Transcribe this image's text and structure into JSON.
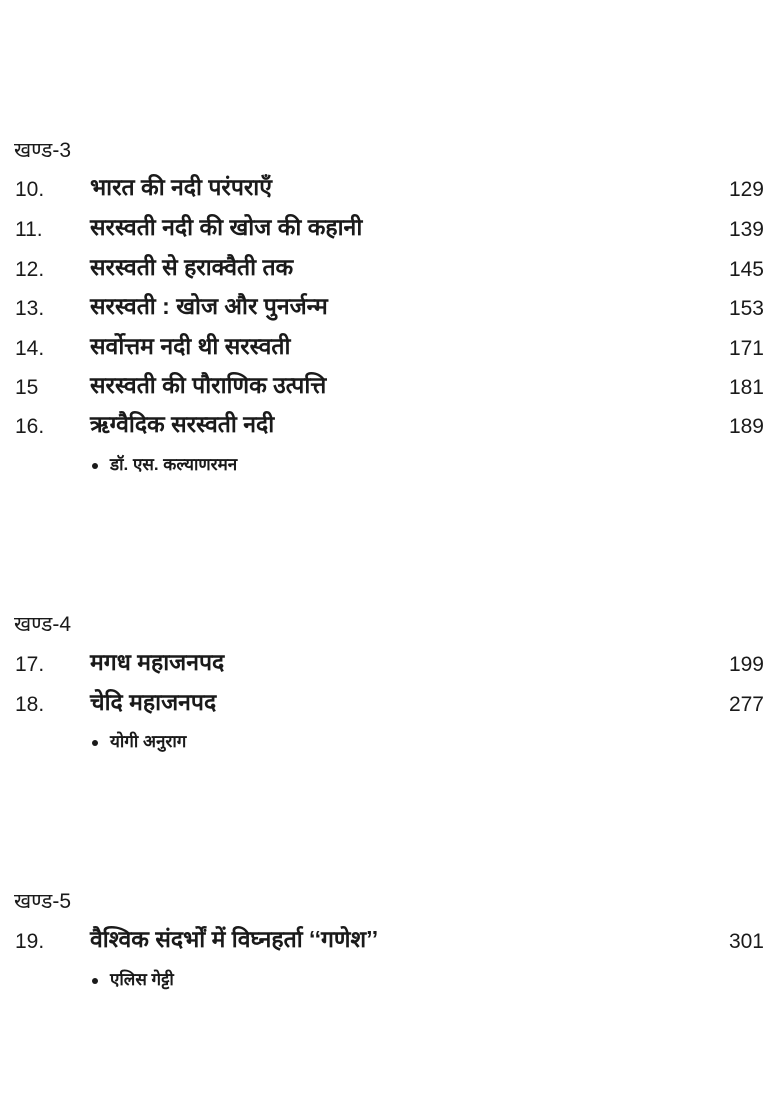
{
  "sections": [
    {
      "heading": "खण्ड-3",
      "entries": [
        {
          "number": "10.",
          "title": "भारत की नदी परंपराएँ",
          "page": "129"
        },
        {
          "number": "11.",
          "title": "सरस्वती नदी की खोज की कहानी",
          "page": "139"
        },
        {
          "number": "12.",
          "title": "सरस्वती से हराक्वैती तक",
          "page": "145"
        },
        {
          "number": "13.",
          "title": "सरस्वती : खोज और पुनर्जन्म",
          "page": "153"
        },
        {
          "number": "14.",
          "title": "सर्वोत्तम नदी थी सरस्वती",
          "page": "171"
        },
        {
          "number": "15",
          "title": "सरस्वती की पौराणिक उत्पत्ति",
          "page": "181"
        },
        {
          "number": "16.",
          "title": "ऋग्वैदिक सरस्वती नदी",
          "page": "189"
        }
      ],
      "author": "डॉ. एस. कल्याणरमन"
    },
    {
      "heading": "खण्ड-4",
      "entries": [
        {
          "number": "17.",
          "title": "मगध महाजनपद",
          "page": "199"
        },
        {
          "number": "18.",
          "title": "चेदि महाजनपद",
          "page": "277"
        }
      ],
      "author": "योगी अनुराग"
    },
    {
      "heading": "खण्ड-5",
      "entries": [
        {
          "number": "19.",
          "title": "वैश्विक संदर्भों में विघ्नहर्ता ‘‘गणेश’’",
          "page": "301"
        }
      ],
      "author": "एलिस गेट्टी"
    }
  ]
}
